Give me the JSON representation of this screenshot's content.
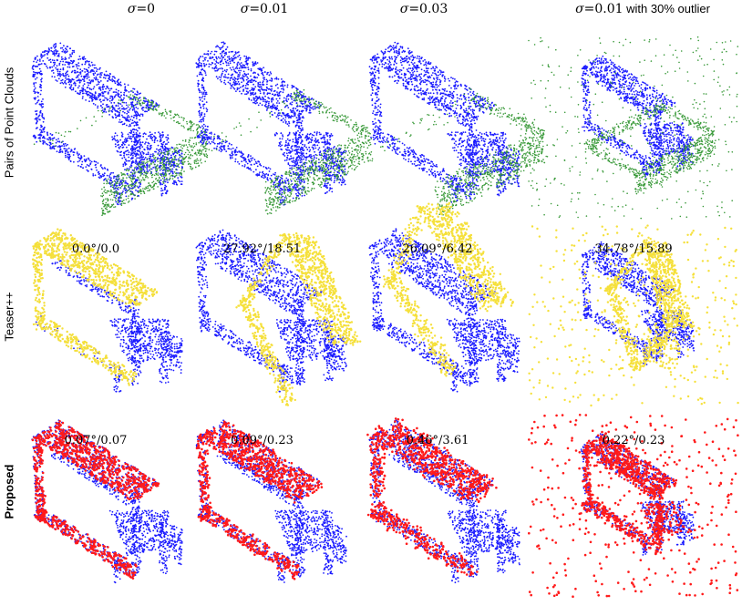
{
  "columns": [
    {
      "sigma_symbol": "σ",
      "value_text": "=0",
      "extra": ""
    },
    {
      "sigma_symbol": "σ",
      "value_text": "=0.01",
      "extra": ""
    },
    {
      "sigma_symbol": "σ",
      "value_text": "=0.03",
      "extra": ""
    },
    {
      "sigma_symbol": "σ",
      "value_text": "=0.01",
      "extra": " with 30% outlier"
    }
  ],
  "rows": [
    {
      "label": "Pairs of Point Clouds",
      "bold": false,
      "overlay_color": "#3a9a3a",
      "metrics": [
        "",
        "",
        "",
        ""
      ]
    },
    {
      "label": "Teaser++",
      "bold": false,
      "overlay_color": "#f5e03a",
      "metrics": [
        "0.0°/0.0",
        "27.92°/18.51",
        "26.09°/6.42",
        "34.78°/15.89"
      ]
    },
    {
      "label": "Proposed",
      "bold": true,
      "overlay_color": "#ff1a1a",
      "metrics": [
        "0.07°/0.07",
        "0.09°/0.23",
        "0.46°/3.61",
        "0.22°/0.23"
      ]
    }
  ],
  "colors": {
    "target": "#1a1aff"
  }
}
